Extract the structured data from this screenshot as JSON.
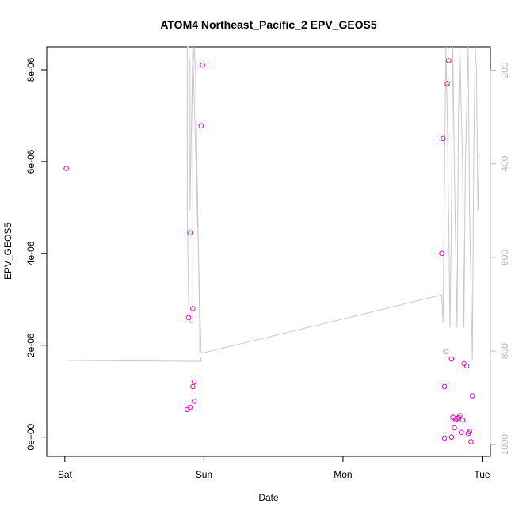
{
  "chart_data": {
    "type": "scatter",
    "title": "ATOM4 Northeast_Pacific_2 EPV_GEOS5",
    "xlabel": "Date",
    "ylabel": "EPV_GEOS5",
    "x_unit": "days since Sat 00:00",
    "xlim": [
      -0.13,
      3.06
    ],
    "ylim": [
      -4.2e-07,
      8.5e-06
    ],
    "x_ticks": [
      {
        "value": 0,
        "label": "Sat"
      },
      {
        "value": 1,
        "label": "Sun"
      },
      {
        "value": 2,
        "label": "Mon"
      },
      {
        "value": 3,
        "label": "Tue"
      }
    ],
    "y_ticks": [
      {
        "value": 0,
        "label": "0e+00"
      },
      {
        "value": 2e-06,
        "label": "2e-06"
      },
      {
        "value": 4e-06,
        "label": "4e-06"
      },
      {
        "value": 6e-06,
        "label": "6e-06"
      },
      {
        "value": 8e-06,
        "label": "8e-06"
      }
    ],
    "right_axis": {
      "ylim": [
        1025,
        150
      ],
      "ticks": [
        {
          "value": 200,
          "label": "200"
        },
        {
          "value": 400,
          "label": "400"
        },
        {
          "value": 600,
          "label": "600"
        },
        {
          "value": 800,
          "label": "800"
        },
        {
          "value": 1000,
          "label": "1000"
        }
      ]
    },
    "series": [
      {
        "kind": "points",
        "color": "#ff00cc",
        "points": [
          [
            0.01,
            5.85e-06
          ],
          [
            0.89,
            2.6e-06
          ],
          [
            0.9,
            4.45e-06
          ],
          [
            0.92,
            2.8e-06
          ],
          [
            0.98,
            6.78e-06
          ],
          [
            0.99,
            8.1e-06
          ],
          [
            0.88,
            6e-07
          ],
          [
            0.9,
            6.5e-07
          ],
          [
            0.92,
            1.1e-06
          ],
          [
            0.93,
            1.2e-06
          ],
          [
            0.93,
            7.8e-07
          ],
          [
            2.71,
            4e-06
          ],
          [
            2.72,
            6.5e-06
          ],
          [
            2.73,
            1.1e-06
          ],
          [
            2.74,
            1.87e-06
          ],
          [
            2.75,
            7.7e-06
          ],
          [
            2.76,
            8.2e-06
          ],
          [
            2.78,
            1.7e-06
          ],
          [
            2.73,
            -2e-08
          ],
          [
            2.78,
            0.0
          ],
          [
            2.79,
            4.3e-07
          ],
          [
            2.8,
            2e-07
          ],
          [
            2.81,
            3.8e-07
          ],
          [
            2.82,
            4e-07
          ],
          [
            2.83,
            4.2e-07
          ],
          [
            2.84,
            4.7e-07
          ],
          [
            2.85,
            1e-07
          ],
          [
            2.86,
            3.7e-07
          ],
          [
            2.87,
            1.6e-06
          ],
          [
            2.89,
            1.55e-06
          ],
          [
            2.9,
            8e-08
          ],
          [
            2.91,
            1.2e-07
          ],
          [
            2.92,
            -1e-07
          ],
          [
            2.93,
            9e-07
          ]
        ]
      },
      {
        "kind": "line",
        "color": "#c8c8c8",
        "axis": "right",
        "points": [
          [
            0.01,
            820
          ],
          [
            0.98,
            822
          ],
          [
            0.97,
            805
          ],
          [
            0.97,
            760
          ],
          [
            0.95,
            400
          ],
          [
            0.94,
            200
          ],
          [
            0.93,
            150
          ],
          [
            0.92,
            200
          ],
          [
            0.92,
            740
          ],
          [
            0.9,
            740
          ],
          [
            0.89,
            700
          ],
          [
            0.88,
            500
          ],
          [
            0.88,
            300
          ],
          [
            0.88,
            150
          ],
          [
            0.89,
            150
          ],
          [
            0.9,
            200
          ],
          [
            0.9,
            500
          ],
          [
            0.92,
            150
          ],
          [
            0.98,
            805
          ],
          [
            2.71,
            680
          ],
          [
            2.72,
            740
          ],
          [
            2.73,
            420
          ],
          [
            2.74,
            150
          ],
          [
            2.75,
            300
          ],
          [
            2.77,
            750
          ],
          [
            2.78,
            500
          ],
          [
            2.79,
            150
          ],
          [
            2.8,
            400
          ],
          [
            2.82,
            750
          ],
          [
            2.83,
            300
          ],
          [
            2.84,
            150
          ],
          [
            2.86,
            400
          ],
          [
            2.87,
            750
          ],
          [
            2.88,
            400
          ],
          [
            2.9,
            150
          ],
          [
            2.91,
            500
          ],
          [
            2.93,
            820
          ],
          [
            2.94,
            400
          ],
          [
            2.95,
            150
          ],
          [
            2.96,
            200
          ],
          [
            2.97,
            500
          ],
          [
            2.98,
            380
          ]
        ]
      }
    ],
    "grid": false
  }
}
